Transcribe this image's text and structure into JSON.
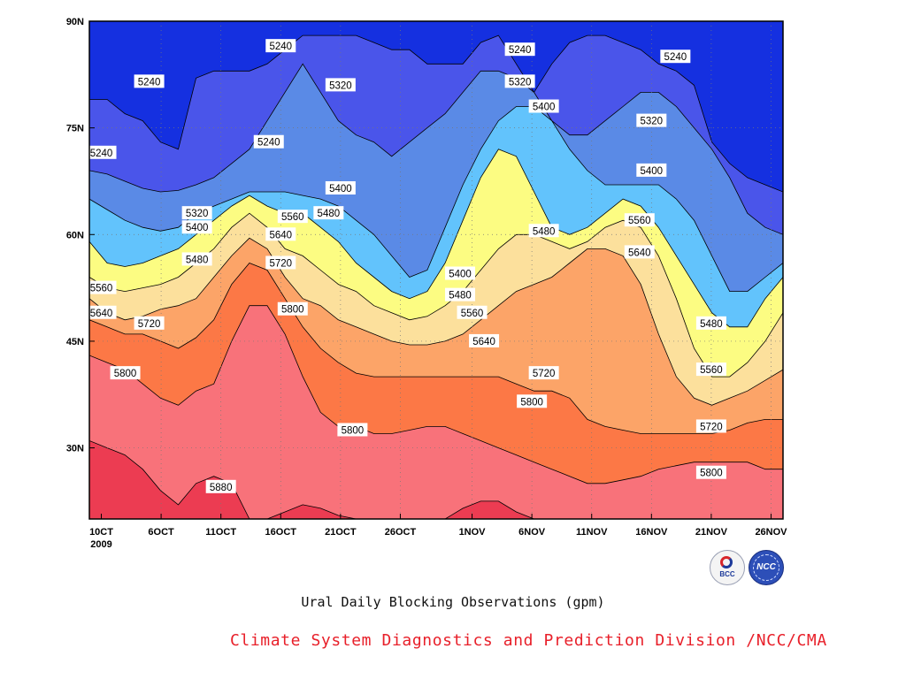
{
  "chart_data": {
    "type": "heatmap",
    "subtype": "filled-contour",
    "title": "Ural Daily Blocking Observations (gpm)",
    "xlabel": "",
    "ylabel": "",
    "x_ticks": [
      "10CT",
      "6OCT",
      "11OCT",
      "16OCT",
      "21OCT",
      "26OCT",
      "1NOV",
      "6NOV",
      "11NOV",
      "16NOV",
      "21NOV",
      "26NOV"
    ],
    "x_tick_secondary": "2009",
    "y_ticks": [
      "30N",
      "45N",
      "60N",
      "75N",
      "90N"
    ],
    "xlim": [
      "2009-09-30",
      "2009-11-27"
    ],
    "ylim": [
      20,
      90
    ],
    "grid": "dotted",
    "contour_levels": [
      5240,
      5320,
      5400,
      5480,
      5560,
      5640,
      5720,
      5800,
      5880
    ],
    "fill_colors": [
      "#0c1a78",
      "#1530e0",
      "#4a55ea",
      "#5a8ae6",
      "#62c3fc",
      "#fcfc82",
      "#fce09c",
      "#fca468",
      "#fc7846",
      "#f8727a",
      "#ec3c52"
    ],
    "level_lines": [
      {
        "value": 5240,
        "latitude": [
          79.0,
          79.0,
          77.0,
          76.0,
          73.0,
          72.0,
          82.0,
          83.0,
          83.0,
          83.0,
          84.0,
          86.0,
          88.0,
          88.0,
          88.0,
          88.0,
          87.0,
          86.0,
          86.0,
          84.0,
          84.0,
          84.0,
          87.0,
          88.0,
          84.0,
          80.0,
          84.0,
          87.0,
          88.0,
          88.0,
          87.0,
          86.0,
          84.0,
          83.0,
          81.0,
          73.0,
          70.0,
          68.0,
          67.0,
          66.0
        ]
      },
      {
        "value": 5320,
        "latitude": [
          69.0,
          68.5,
          67.5,
          66.5,
          66.0,
          66.2,
          67.0,
          68.0,
          70.0,
          72.0,
          76.0,
          80.0,
          84.0,
          80.0,
          76.0,
          74.0,
          73.0,
          71.0,
          73.0,
          75.0,
          77.0,
          80.0,
          83.0,
          83.0,
          82.0,
          80.0,
          76.0,
          74.0,
          74.0,
          76.0,
          78.0,
          80.0,
          80.0,
          78.0,
          75.0,
          72.0,
          68.0,
          63.0,
          61.0,
          60.0
        ]
      },
      {
        "value": 5400,
        "latitude": [
          65.0,
          63.5,
          62.0,
          61.0,
          60.5,
          61.0,
          63.0,
          64.0,
          65.0,
          66.0,
          66.0,
          66.0,
          65.5,
          65.0,
          64.0,
          62.0,
          60.0,
          57.0,
          54.0,
          55.0,
          61.0,
          67.0,
          72.0,
          76.0,
          78.0,
          78.0,
          76.0,
          72.0,
          69.0,
          67.0,
          67.0,
          67.0,
          67.0,
          65.0,
          62.0,
          57.0,
          52.0,
          52.0,
          54.0,
          56.0
        ]
      },
      {
        "value": 5480,
        "latitude": [
          59.0,
          56.0,
          55.5,
          56.0,
          57.0,
          58.0,
          60.0,
          62.0,
          64.0,
          65.5,
          64.0,
          63.0,
          63.0,
          61.0,
          59.0,
          56.0,
          54.0,
          52.0,
          51.0,
          52.0,
          56.0,
          62.0,
          68.0,
          72.0,
          71.0,
          66.0,
          61.0,
          60.0,
          61.0,
          63.0,
          65.0,
          64.0,
          61.0,
          57.0,
          53.0,
          49.0,
          47.0,
          47.0,
          51.0,
          54.0
        ]
      },
      {
        "value": 5560,
        "latitude": [
          54.0,
          52.5,
          52.0,
          52.5,
          53.0,
          54.0,
          56.0,
          58.0,
          61.0,
          63.0,
          61.0,
          58.0,
          57.0,
          55.0,
          53.0,
          52.0,
          50.0,
          49.0,
          48.0,
          48.5,
          50.0,
          52.0,
          55.0,
          58.0,
          60.0,
          60.0,
          59.0,
          58.0,
          59.0,
          61.0,
          62.0,
          61.0,
          57.0,
          51.0,
          44.0,
          40.0,
          40.0,
          42.0,
          45.0,
          49.0
        ]
      },
      {
        "value": 5640,
        "latitude": [
          51.0,
          49.0,
          48.0,
          48.5,
          49.5,
          50.0,
          51.0,
          54.0,
          57.0,
          59.5,
          58.0,
          54.0,
          51.0,
          50.0,
          48.0,
          47.0,
          46.0,
          45.0,
          44.5,
          44.5,
          45.0,
          46.0,
          48.0,
          50.0,
          52.0,
          53.0,
          54.0,
          56.0,
          58.0,
          58.0,
          57.0,
          53.0,
          46.0,
          40.0,
          37.0,
          36.0,
          37.0,
          38.0,
          39.5,
          41.0
        ]
      },
      {
        "value": 5720,
        "latitude": [
          48.0,
          47.0,
          46.0,
          46.0,
          45.0,
          44.0,
          45.5,
          48.0,
          53.0,
          56.0,
          55.0,
          51.0,
          47.0,
          44.0,
          42.0,
          40.5,
          40.0,
          40.0,
          40.0,
          40.0,
          40.0,
          40.0,
          40.0,
          40.0,
          39.0,
          38.0,
          38.0,
          37.0,
          34.0,
          33.0,
          32.5,
          32.0,
          32.0,
          32.0,
          32.0,
          32.0,
          32.5,
          33.5,
          34.0,
          34.0
        ]
      },
      {
        "value": 5800,
        "latitude": [
          43.0,
          42.0,
          41.0,
          39.0,
          37.0,
          36.0,
          38.0,
          39.0,
          45.0,
          50.0,
          50.0,
          46.0,
          40.0,
          35.0,
          33.0,
          33.0,
          32.0,
          32.0,
          32.5,
          33.0,
          33.0,
          32.0,
          31.0,
          30.0,
          29.0,
          28.0,
          27.0,
          26.0,
          25.0,
          25.0,
          25.5,
          26.0,
          27.0,
          27.5,
          28.0,
          28.0,
          28.0,
          28.0,
          27.0,
          27.0
        ]
      },
      {
        "value": 5880,
        "latitude": [
          31.0,
          30.0,
          29.0,
          27.0,
          24.0,
          22.0,
          25.0,
          26.0,
          25.0,
          20.0,
          20.0,
          21.0,
          22.0,
          21.5,
          20.5,
          20.0,
          20.0,
          20.0,
          20.0,
          20.0,
          20.0,
          21.5,
          22.5,
          22.5,
          21.0,
          20.0,
          20.0,
          20.0,
          20.0,
          20.0,
          20.0,
          20.0,
          20.0,
          20.0,
          20.0,
          20.0,
          20.0,
          20.0,
          20.0,
          20.0
        ]
      }
    ],
    "contour_labels": [
      {
        "text": "5240",
        "date": "2009-10-16",
        "lat": 86.5
      },
      {
        "text": "5240",
        "date": "2009-10-05",
        "lat": 81.5
      },
      {
        "text": "5240",
        "date": "2009-10-01",
        "lat": 71.5
      },
      {
        "text": "5240",
        "date": "2009-10-15",
        "lat": 73.0
      },
      {
        "text": "5240",
        "date": "2009-11-05",
        "lat": 86.0
      },
      {
        "text": "5240",
        "date": "2009-11-18",
        "lat": 85.0
      },
      {
        "text": "5320",
        "date": "2009-10-21",
        "lat": 81.0
      },
      {
        "text": "5320",
        "date": "2009-11-05",
        "lat": 81.5
      },
      {
        "text": "5320",
        "date": "2009-11-16",
        "lat": 76.0
      },
      {
        "text": "5320",
        "date": "2009-10-09",
        "lat": 63.0
      },
      {
        "text": "5400",
        "date": "2009-10-21",
        "lat": 66.5
      },
      {
        "text": "5400",
        "date": "2009-11-07",
        "lat": 78.0
      },
      {
        "text": "5400",
        "date": "2009-11-16",
        "lat": 69.0
      },
      {
        "text": "5400",
        "date": "2009-10-09",
        "lat": 61.0
      },
      {
        "text": "5400",
        "date": "2009-10-31",
        "lat": 54.5
      },
      {
        "text": "5480",
        "date": "2009-10-09",
        "lat": 56.5
      },
      {
        "text": "5480",
        "date": "2009-10-20",
        "lat": 63.0
      },
      {
        "text": "5480",
        "date": "2009-11-07",
        "lat": 60.5
      },
      {
        "text": "5480",
        "date": "2009-10-31",
        "lat": 51.5
      },
      {
        "text": "5480",
        "date": "2009-11-21",
        "lat": 47.5
      },
      {
        "text": "5560",
        "date": "2009-10-01",
        "lat": 52.5
      },
      {
        "text": "5560",
        "date": "2009-10-17",
        "lat": 62.5
      },
      {
        "text": "5560",
        "date": "2009-11-01",
        "lat": 49.0
      },
      {
        "text": "5560",
        "date": "2009-11-15",
        "lat": 62.0
      },
      {
        "text": "5560",
        "date": "2009-11-21",
        "lat": 41.0
      },
      {
        "text": "5640",
        "date": "2009-10-01",
        "lat": 49.0
      },
      {
        "text": "5640",
        "date": "2009-10-16",
        "lat": 60.0
      },
      {
        "text": "5640",
        "date": "2009-11-02",
        "lat": 45.0
      },
      {
        "text": "5640",
        "date": "2009-11-15",
        "lat": 57.5
      },
      {
        "text": "5720",
        "date": "2009-10-05",
        "lat": 47.5
      },
      {
        "text": "5720",
        "date": "2009-10-16",
        "lat": 56.0
      },
      {
        "text": "5720",
        "date": "2009-11-07",
        "lat": 40.5
      },
      {
        "text": "5720",
        "date": "2009-11-21",
        "lat": 33.0
      },
      {
        "text": "5800",
        "date": "2009-10-03",
        "lat": 40.5
      },
      {
        "text": "5800",
        "date": "2009-10-17",
        "lat": 49.5
      },
      {
        "text": "5800",
        "date": "2009-10-22",
        "lat": 32.5
      },
      {
        "text": "5800",
        "date": "2009-11-06",
        "lat": 36.5
      },
      {
        "text": "5800",
        "date": "2009-11-21",
        "lat": 26.5
      },
      {
        "text": "5880",
        "date": "2009-10-11",
        "lat": 24.5
      }
    ]
  },
  "figure": {
    "title": "Ural Daily Blocking Observations (gpm)",
    "credit": "Climate System Diagnostics and Prediction Division /NCC/CMA",
    "logos": [
      {
        "name": "bcc-logo",
        "text": "BCC",
        "icon": "bcc-swirl-icon"
      },
      {
        "name": "ncc-logo",
        "text": "NCC",
        "icon": "ncc-globe-icon"
      }
    ]
  }
}
